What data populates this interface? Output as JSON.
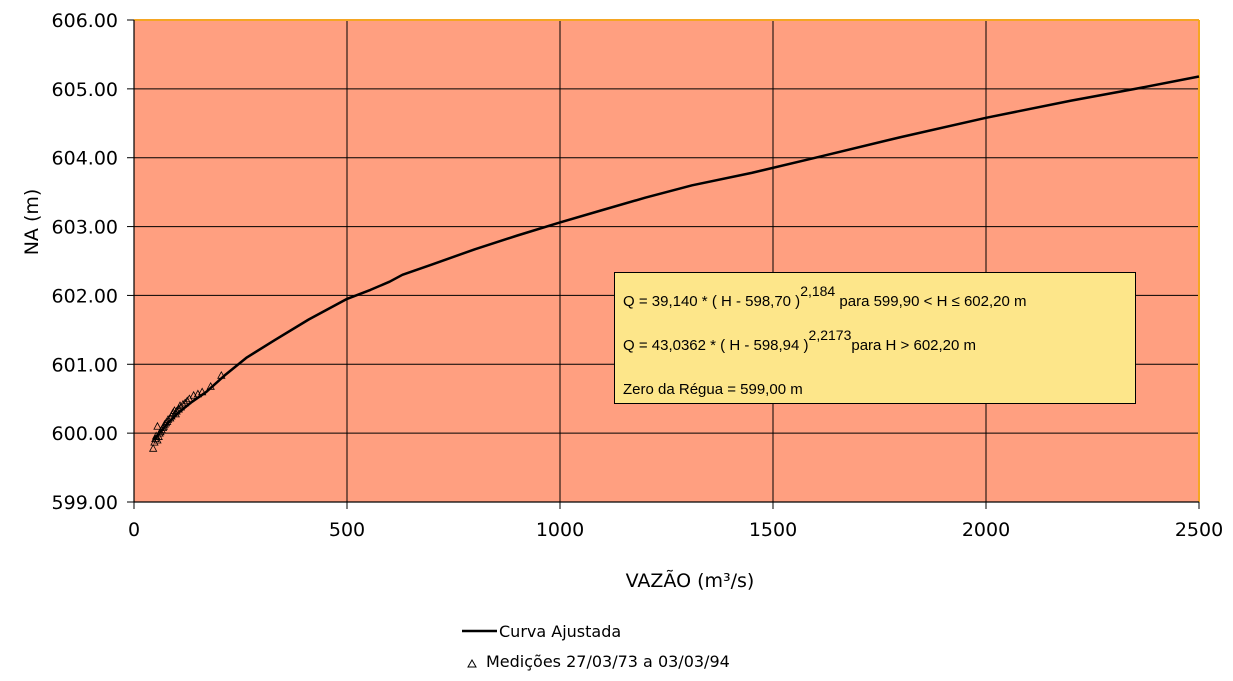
{
  "chart_data": {
    "type": "line",
    "title": "",
    "xlabel": "VAZÃO  (m³/s)",
    "ylabel": "NA  (m)",
    "xlim": [
      0,
      2500
    ],
    "ylim": [
      599,
      606
    ],
    "x_ticks": [
      "0",
      "500",
      "1000",
      "1500",
      "2000",
      "2500"
    ],
    "y_ticks": [
      "599.00",
      "600.00",
      "601.00",
      "602.00",
      "603.00",
      "604.00",
      "605.00",
      "606.00"
    ],
    "grid": true,
    "background_color": "#ff9f80",
    "legend_position": "bottom-center",
    "series": [
      {
        "name": "Curva Ajustada",
        "style": "line",
        "color": "#000000",
        "x": [
          45,
          60,
          80,
          105,
          135,
          170,
          215,
          265,
          330,
          410,
          500,
          555,
          600,
          630,
          700,
          800,
          900,
          1000,
          1100,
          1200,
          1310,
          1450,
          1600,
          1800,
          2000,
          2200,
          2350,
          2500
        ],
        "y": [
          599.9,
          600.0,
          600.15,
          600.3,
          600.45,
          600.6,
          600.85,
          601.1,
          601.35,
          601.65,
          601.95,
          602.08,
          602.2,
          602.3,
          602.45,
          602.67,
          602.87,
          603.06,
          603.24,
          603.42,
          603.6,
          603.78,
          604.0,
          604.3,
          604.58,
          604.83,
          605.0,
          605.18
        ]
      },
      {
        "name": "Medições 27/03/73 a 03/03/94",
        "style": "marker",
        "marker": "triangle",
        "x": [
          45,
          48,
          50,
          52,
          55,
          55,
          58,
          60,
          62,
          65,
          68,
          70,
          72,
          75,
          78,
          80,
          85,
          88,
          90,
          92,
          95,
          98,
          100,
          105,
          108,
          110,
          115,
          120,
          125,
          130,
          140,
          150,
          160,
          180,
          205
        ],
        "y": [
          599.78,
          599.87,
          599.92,
          599.96,
          600.1,
          599.9,
          599.95,
          600.0,
          600.02,
          600.05,
          600.08,
          600.1,
          600.13,
          600.15,
          600.17,
          600.2,
          600.22,
          600.25,
          600.28,
          600.3,
          600.33,
          600.28,
          600.32,
          600.35,
          600.4,
          600.38,
          600.42,
          600.44,
          600.47,
          600.5,
          600.55,
          600.57,
          600.6,
          600.68,
          600.84
        ]
      }
    ],
    "annotation": {
      "line1_main": "Q = 39,140 * ( H - 598,70 )",
      "line1_exp": "2,184",
      "line1_cond": " para  599,90 < H ≤ 602,20 m",
      "line2_main": "Q = 43,0362 * ( H - 598,94 )",
      "line2_exp": "2,2173",
      "line2_cond": "para H > 602,20 m",
      "line3": "Zero da Régua = 599,00 m"
    }
  }
}
